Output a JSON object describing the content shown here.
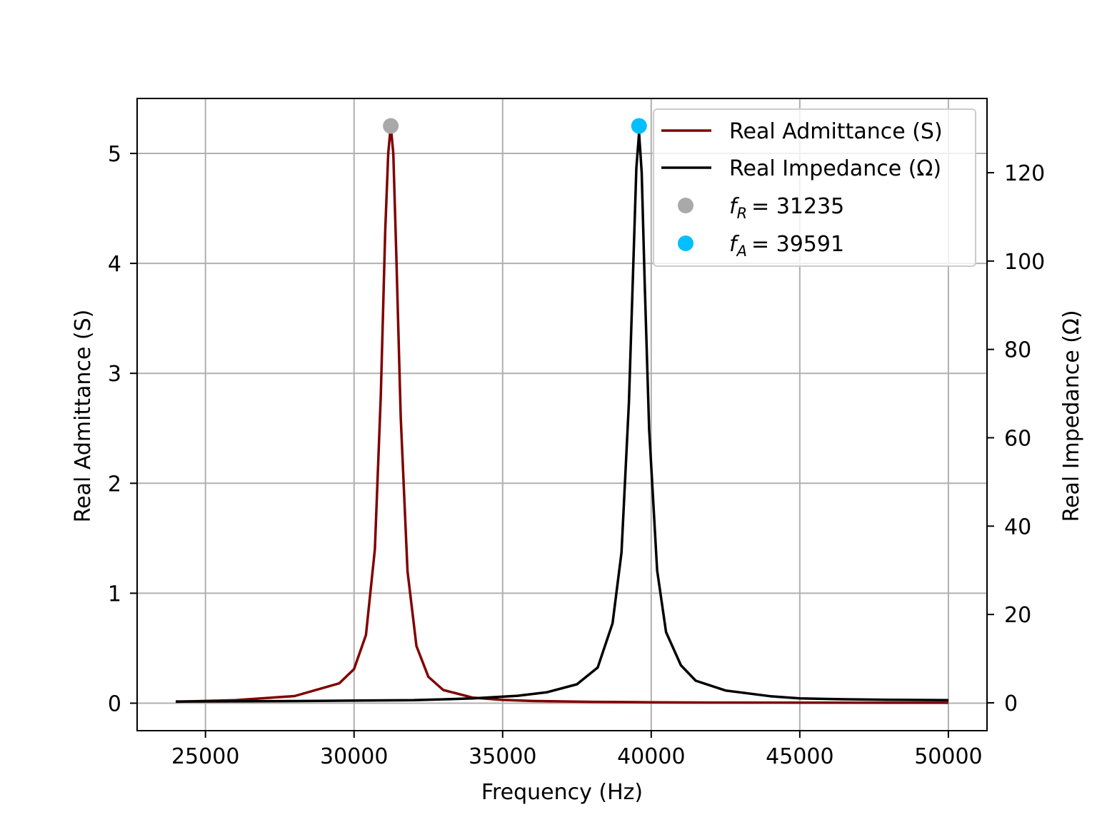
{
  "chart_data": {
    "type": "line",
    "xlabel": "Frequency (Hz)",
    "ylabel_left": "Real Admittance (S)",
    "ylabel_right": "Real Impedance (Ω)",
    "xlim": [
      22700,
      51300
    ],
    "ylim_left": [
      -0.25,
      5.5
    ],
    "ylim_right": [
      -6.3,
      136.8
    ],
    "x_ticks": [
      25000,
      30000,
      35000,
      40000,
      45000,
      50000
    ],
    "x_tick_labels": [
      "25000",
      "30000",
      "35000",
      "40000",
      "45000",
      "50000"
    ],
    "y_left_ticks": [
      0,
      1,
      2,
      3,
      4,
      5
    ],
    "y_left_tick_labels": [
      "0",
      "1",
      "2",
      "3",
      "4",
      "5"
    ],
    "y_right_ticks": [
      0,
      20,
      40,
      60,
      80,
      100,
      120
    ],
    "y_right_tick_labels": [
      "0",
      "20",
      "40",
      "60",
      "80",
      "100",
      "120"
    ],
    "grid": true,
    "legend_position": "top-right",
    "series": [
      {
        "name": "Real Admittance (S)",
        "axis": "left",
        "color": "#800000",
        "x": [
          24000,
          26000,
          28000,
          29500,
          30000,
          30400,
          30700,
          30900,
          31050,
          31150,
          31235,
          31320,
          31420,
          31570,
          31800,
          32100,
          32500,
          33000,
          34000,
          35000,
          36000,
          38000,
          40000,
          42000,
          45000,
          48000,
          50000
        ],
        "y": [
          0.013,
          0.028,
          0.065,
          0.18,
          0.31,
          0.62,
          1.4,
          2.8,
          4.3,
          5.0,
          5.25,
          5.0,
          4.1,
          2.6,
          1.2,
          0.52,
          0.24,
          0.12,
          0.05,
          0.03,
          0.02,
          0.012,
          0.008,
          0.006,
          0.005,
          0.004,
          0.004
        ]
      },
      {
        "name": "Real Impedance (Ω)",
        "axis": "right",
        "color": "#000000",
        "x": [
          24000,
          28000,
          32000,
          34000,
          35500,
          36500,
          37500,
          38200,
          38700,
          39000,
          39250,
          39400,
          39500,
          39591,
          39680,
          39780,
          39930,
          40200,
          40500,
          41000,
          41500,
          42500,
          44000,
          45000,
          46500,
          48000,
          50000
        ],
        "y": [
          0.3,
          0.4,
          0.6,
          1.0,
          1.6,
          2.4,
          4.2,
          8.0,
          18,
          34,
          68,
          100,
          121,
          129,
          120,
          95,
          62,
          30,
          16,
          8.5,
          5.0,
          2.8,
          1.5,
          1.0,
          0.8,
          0.7,
          0.6
        ]
      }
    ],
    "markers": [
      {
        "label": "f_R = 31235",
        "math_symbol": "f",
        "math_sub": "R",
        "math_rest": "= 31235",
        "x": 31235,
        "y": 5.25,
        "axis": "left",
        "color": "#a9a9a9"
      },
      {
        "label": "f_A = 39591",
        "math_symbol": "f",
        "math_sub": "A",
        "math_rest": "= 39591",
        "x": 39591,
        "y": 5.25,
        "axis": "left",
        "color": "#00bfff"
      }
    ]
  }
}
